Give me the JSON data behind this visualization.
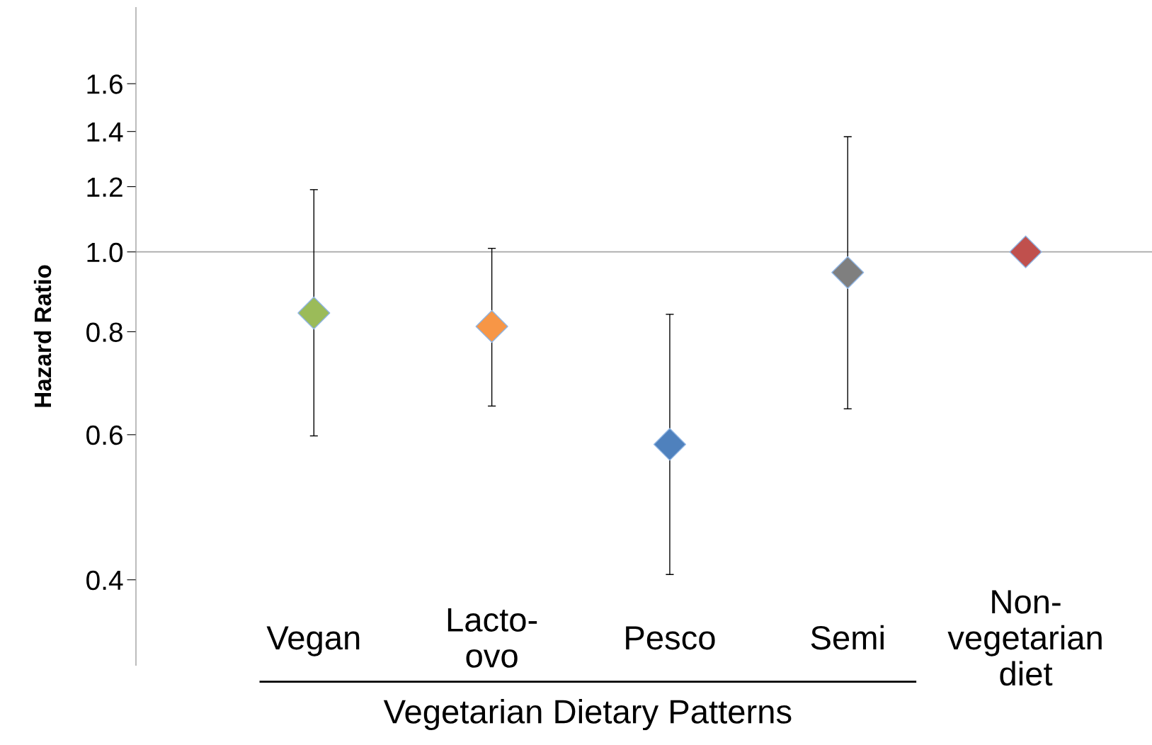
{
  "chart_data": {
    "type": "scatter",
    "ylabel": "Hazard Ratio",
    "categories": [
      "Vegan",
      "Lacto-\novo",
      "Pesco",
      "Semi",
      "Non-\nvegetarian\ndiet"
    ],
    "series": [
      {
        "values": [
          0.843,
          0.812,
          0.584,
          0.944,
          1.0
        ],
        "colors": [
          "#9bbb59",
          "#f79646",
          "#4f81bd",
          "#7f7f7f",
          "#c0504d"
        ],
        "errors": [
          [
            0.598,
            1.19
          ],
          [
            0.65,
            1.01
          ],
          [
            0.406,
            0.84
          ],
          [
            0.645,
            1.38
          ],
          null
        ]
      }
    ],
    "log": "y",
    "ylim": [
      0.315,
      1.98
    ],
    "yticks": [
      0.4,
      0.6,
      0.8,
      {
        "value": 1,
        "label": "1.0"
      },
      1.2,
      1.4,
      1.6
    ],
    "ref_lines": [
      {
        "axis": "y",
        "value": 1,
        "color": "#a6a6a6"
      }
    ],
    "annotations": [
      "Vegetarian Dietary Patterns"
    ],
    "marker": "diamond",
    "grid": false,
    "legend": false
  }
}
